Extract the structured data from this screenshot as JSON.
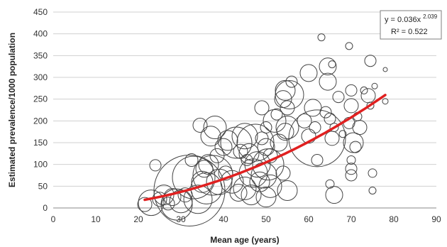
{
  "chart_data": {
    "type": "scatter",
    "title": "",
    "xlabel": "Mean age (years)",
    "ylabel": "Estimated prevalence/1000 population",
    "xlim": [
      0,
      90
    ],
    "ylim": [
      0,
      450
    ],
    "xticks": [
      0,
      10,
      20,
      30,
      40,
      50,
      60,
      70,
      80,
      90
    ],
    "yticks": [
      0,
      50,
      100,
      150,
      200,
      250,
      300,
      350,
      400,
      450
    ],
    "grid": "horizontal",
    "marker": "open circle (size proportional to sample size)",
    "colors": {
      "points": "#444444",
      "trend": "#e02020",
      "grid": "#d0d0d0"
    },
    "points": [
      {
        "x": 21.5,
        "y": 8,
        "r": 10
      },
      {
        "x": 23,
        "y": 12,
        "r": 18
      },
      {
        "x": 24,
        "y": 98,
        "r": 8
      },
      {
        "x": 25,
        "y": 20,
        "r": 10
      },
      {
        "x": 26,
        "y": 30,
        "r": 14
      },
      {
        "x": 27,
        "y": 10,
        "r": 9
      },
      {
        "x": 28,
        "y": 25,
        "r": 12
      },
      {
        "x": 29,
        "y": 8,
        "r": 22
      },
      {
        "x": 30,
        "y": 15,
        "r": 16
      },
      {
        "x": 31,
        "y": 30,
        "r": 10
      },
      {
        "x": 32,
        "y": 40,
        "r": 50
      },
      {
        "x": 32.5,
        "y": 110,
        "r": 9
      },
      {
        "x": 33,
        "y": 70,
        "r": 30
      },
      {
        "x": 34,
        "y": 20,
        "r": 20
      },
      {
        "x": 34.5,
        "y": 190,
        "r": 10
      },
      {
        "x": 35,
        "y": 60,
        "r": 15
      },
      {
        "x": 35.5,
        "y": 90,
        "r": 12
      },
      {
        "x": 36,
        "y": 45,
        "r": 22
      },
      {
        "x": 36.5,
        "y": 100,
        "r": 14
      },
      {
        "x": 37,
        "y": 165,
        "r": 14
      },
      {
        "x": 37.5,
        "y": 75,
        "r": 28
      },
      {
        "x": 38,
        "y": 185,
        "r": 16
      },
      {
        "x": 38.5,
        "y": 120,
        "r": 10
      },
      {
        "x": 39,
        "y": 60,
        "r": 18
      },
      {
        "x": 40,
        "y": 140,
        "r": 12
      },
      {
        "x": 40.5,
        "y": 80,
        "r": 10
      },
      {
        "x": 41,
        "y": 155,
        "r": 14
      },
      {
        "x": 42,
        "y": 60,
        "r": 16
      },
      {
        "x": 43,
        "y": 150,
        "r": 22
      },
      {
        "x": 43.5,
        "y": 35,
        "r": 12
      },
      {
        "x": 44,
        "y": 130,
        "r": 10
      },
      {
        "x": 45,
        "y": 165,
        "r": 18
      },
      {
        "x": 45,
        "y": 45,
        "r": 16
      },
      {
        "x": 45.5,
        "y": 110,
        "r": 8
      },
      {
        "x": 46,
        "y": 125,
        "r": 14
      },
      {
        "x": 46.5,
        "y": 30,
        "r": 14
      },
      {
        "x": 47,
        "y": 80,
        "r": 20
      },
      {
        "x": 47.5,
        "y": 150,
        "r": 26
      },
      {
        "x": 48,
        "y": 100,
        "r": 18
      },
      {
        "x": 48.5,
        "y": 60,
        "r": 14
      },
      {
        "x": 49,
        "y": 160,
        "r": 9
      },
      {
        "x": 49,
        "y": 230,
        "r": 10
      },
      {
        "x": 49.5,
        "y": 75,
        "r": 18
      },
      {
        "x": 50,
        "y": 185,
        "r": 8
      },
      {
        "x": 50,
        "y": 140,
        "r": 12
      },
      {
        "x": 50,
        "y": 25,
        "r": 14
      },
      {
        "x": 50.5,
        "y": 100,
        "r": 22
      },
      {
        "x": 51,
        "y": 50,
        "r": 16
      },
      {
        "x": 51,
        "y": 120,
        "r": 10
      },
      {
        "x": 52,
        "y": 200,
        "r": 16
      },
      {
        "x": 52.5,
        "y": 215,
        "r": 8
      },
      {
        "x": 53,
        "y": 150,
        "r": 12
      },
      {
        "x": 54,
        "y": 250,
        "r": 12
      },
      {
        "x": 54,
        "y": 80,
        "r": 10
      },
      {
        "x": 54.5,
        "y": 270,
        "r": 14
      },
      {
        "x": 54.5,
        "y": 175,
        "r": 12
      },
      {
        "x": 55,
        "y": 230,
        "r": 10
      },
      {
        "x": 55,
        "y": 185,
        "r": 16
      },
      {
        "x": 55,
        "y": 40,
        "r": 14
      },
      {
        "x": 55.5,
        "y": 260,
        "r": 20
      },
      {
        "x": 56,
        "y": 290,
        "r": 8
      },
      {
        "x": 59,
        "y": 200,
        "r": 10
      },
      {
        "x": 60,
        "y": 310,
        "r": 12
      },
      {
        "x": 60,
        "y": 165,
        "r": 10
      },
      {
        "x": 61,
        "y": 230,
        "r": 12
      },
      {
        "x": 61.5,
        "y": 185,
        "r": 8
      },
      {
        "x": 62,
        "y": 110,
        "r": 8
      },
      {
        "x": 62,
        "y": 160,
        "r": 40
      },
      {
        "x": 63,
        "y": 392,
        "r": 5
      },
      {
        "x": 64,
        "y": 220,
        "r": 8
      },
      {
        "x": 64.5,
        "y": 290,
        "r": 12
      },
      {
        "x": 64.5,
        "y": 325,
        "r": 12
      },
      {
        "x": 65,
        "y": 55,
        "r": 6
      },
      {
        "x": 65,
        "y": 205,
        "r": 8
      },
      {
        "x": 65.5,
        "y": 160,
        "r": 10
      },
      {
        "x": 65.5,
        "y": 330,
        "r": 5
      },
      {
        "x": 66,
        "y": 30,
        "r": 12
      },
      {
        "x": 66,
        "y": 185,
        "r": 6
      },
      {
        "x": 67,
        "y": 255,
        "r": 8
      },
      {
        "x": 68,
        "y": 170,
        "r": 5
      },
      {
        "x": 69.5,
        "y": 372,
        "r": 5
      },
      {
        "x": 69.5,
        "y": 195,
        "r": 8
      },
      {
        "x": 70,
        "y": 270,
        "r": 8
      },
      {
        "x": 70,
        "y": 235,
        "r": 10
      },
      {
        "x": 70,
        "y": 110,
        "r": 6
      },
      {
        "x": 70,
        "y": 90,
        "r": 8
      },
      {
        "x": 70,
        "y": 75,
        "r": 8
      },
      {
        "x": 70.5,
        "y": 150,
        "r": 14
      },
      {
        "x": 71,
        "y": 140,
        "r": 8
      },
      {
        "x": 71.5,
        "y": 210,
        "r": 6
      },
      {
        "x": 72,
        "y": 185,
        "r": 10
      },
      {
        "x": 73,
        "y": 270,
        "r": 5
      },
      {
        "x": 74,
        "y": 258,
        "r": 10
      },
      {
        "x": 74.5,
        "y": 235,
        "r": 5
      },
      {
        "x": 74.5,
        "y": 338,
        "r": 8
      },
      {
        "x": 75,
        "y": 80,
        "r": 6
      },
      {
        "x": 75,
        "y": 40,
        "r": 5
      },
      {
        "x": 75.5,
        "y": 280,
        "r": 4
      },
      {
        "x": 78,
        "y": 245,
        "r": 4
      },
      {
        "x": 78,
        "y": 318,
        "r": 3
      }
    ],
    "trendline": {
      "type": "power",
      "a": 0.036,
      "b": 2.039,
      "x_range": [
        21.5,
        78
      ],
      "equation_label": {
        "prefix": "y = 0.036x",
        "exponent": "2.039",
        "r2": "R² = 0.522"
      }
    }
  }
}
